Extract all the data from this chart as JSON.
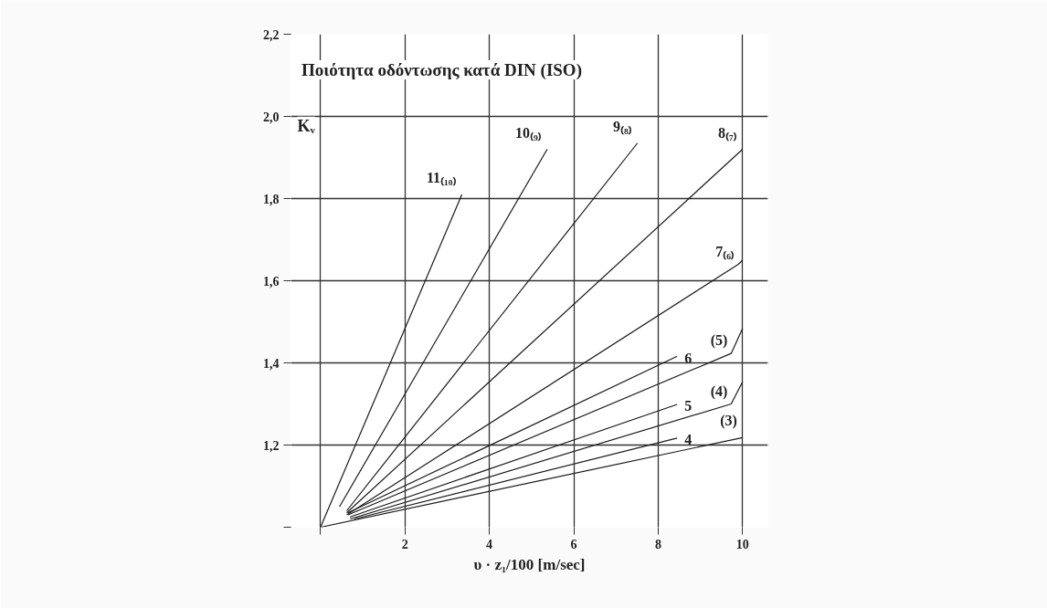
{
  "chart_data": {
    "type": "line",
    "title": "Ποιότητα οδόντωσης κατά DIN (ISO)",
    "xlabel": "υ · z₁/100 [m/sec]",
    "ylabel": "Kᵥ",
    "xlim": [
      -0.7,
      10.6
    ],
    "ylim": [
      1.0,
      2.2
    ],
    "xticks": [
      {
        "value": 0,
        "label": null
      },
      2,
      4,
      6,
      8,
      10
    ],
    "yticks": [
      {
        "value": 1.0,
        "label": null
      },
      {
        "value": 1.2,
        "label": "1,2"
      },
      {
        "value": 1.4,
        "label": "1,4"
      },
      {
        "value": 1.6,
        "label": "1,6"
      },
      {
        "value": 1.8,
        "label": "1,8"
      },
      {
        "value": 2.0,
        "label": "2,0"
      },
      {
        "value": 2.2,
        "label": "2,2"
      }
    ],
    "grid": true,
    "marker": "none",
    "line_style": "solid",
    "series": [
      {
        "name": "11₍₁₀₎",
        "color": "#1a1a1a",
        "x": [
          0,
          3.35
        ],
        "values": [
          1.0,
          1.81
        ]
      },
      {
        "name": "10₍₉₎",
        "color": "#1a1a1a",
        "x": [
          0.45,
          5.37
        ],
        "values": [
          1.05,
          1.92
        ]
      },
      {
        "name": "9₍₈₎",
        "color": "#1a1a1a",
        "x": [
          0.62,
          7.51
        ],
        "values": [
          1.04,
          1.935
        ]
      },
      {
        "name": "8₍₇₎",
        "color": "#1a1a1a",
        "x": [
          0.62,
          10
        ],
        "values": [
          1.035,
          1.92
        ]
      },
      {
        "name": "7₍₆₎",
        "color": "#1a1a1a",
        "x": [
          0.62,
          9.9,
          10
        ],
        "values": [
          1.03,
          1.64,
          1.65
        ]
      },
      {
        "name": "6",
        "color": "#1a1a1a",
        "x": [
          0.65,
          8.45
        ],
        "values": [
          1.035,
          1.416
        ]
      },
      {
        "name": "(5)",
        "color": "#1a1a1a",
        "x": [
          0.65,
          9.73,
          10
        ],
        "values": [
          1.03,
          1.423,
          1.484
        ]
      },
      {
        "name": "5",
        "color": "#1a1a1a",
        "x": [
          0.7,
          8.45
        ],
        "values": [
          1.025,
          1.299
        ]
      },
      {
        "name": "(4)",
        "color": "#1a1a1a",
        "x": [
          0.7,
          9.73,
          10
        ],
        "values": [
          1.02,
          1.3,
          1.354
        ]
      },
      {
        "name": "4",
        "color": "#1a1a1a",
        "x": [
          0.8,
          8.45
        ],
        "values": [
          1.02,
          1.217
        ]
      },
      {
        "name": "(3)",
        "color": "#1a1a1a",
        "x": [
          0,
          10
        ],
        "values": [
          1.0,
          1.218
        ]
      }
    ]
  }
}
